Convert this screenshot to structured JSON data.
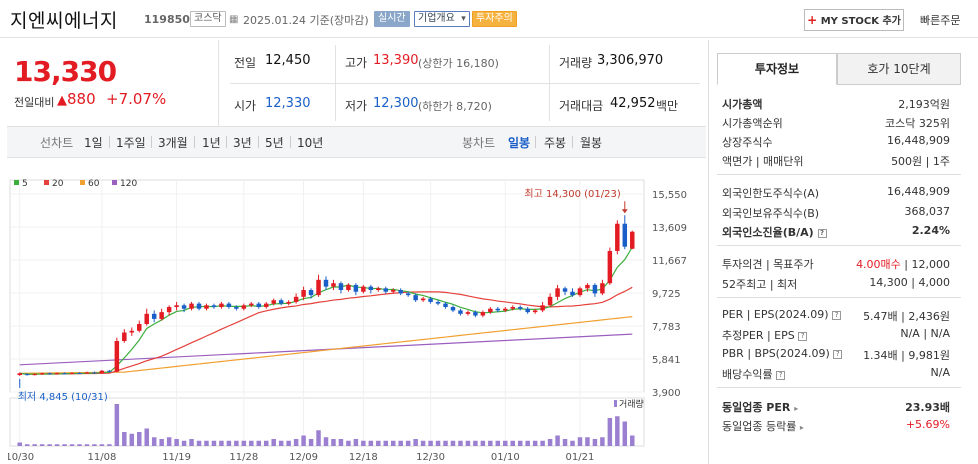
{
  "header": {
    "name": "지엔씨에너지",
    "code": "119850",
    "market": "코스닥",
    "date": "2025.01.24 기준(장마감)",
    "realtime": "실시간",
    "company": "기업개요",
    "warning": "투자주의",
    "mystock": "MY STOCK 추가",
    "quick": "빠른주문"
  },
  "price": {
    "current": "13,330",
    "change_label": "전일대비",
    "change_arrow": "▲",
    "change": "880",
    "change_pct": "+7.07%"
  },
  "quote": {
    "prev_label": "전일",
    "prev": "12,450",
    "high_label": "고가",
    "high": "13,390",
    "high_limit": "(상한가 16,180)",
    "volume_label": "거래량",
    "volume": "3,306,970",
    "open_label": "시가",
    "open": "12,330",
    "low_label": "저가",
    "low": "12,300",
    "low_limit": "(하한가 8,720)",
    "amount_label": "거래대금",
    "amount": "42,952",
    "amount_unit": "백만"
  },
  "periods": {
    "line": "선차트",
    "items": [
      "1일",
      "1주일",
      "3개월",
      "1년",
      "3년",
      "5년",
      "10년"
    ],
    "candle": "봉차트",
    "candle_items": [
      "일봉",
      "주봉",
      "월봉"
    ]
  },
  "chart_data": {
    "type": "candlestick",
    "legend": [
      "5",
      "20",
      "60",
      "120"
    ],
    "legend_colors": [
      "#3cae3c",
      "#e5403b",
      "#f0a030",
      "#9b5fc0"
    ],
    "yticks": [
      "15,550",
      "13,609",
      "11,667",
      "9,725",
      "7,783",
      "5,841",
      "3,900"
    ],
    "yrange": [
      3900,
      15550
    ],
    "xticks": [
      "10/30",
      "11/08",
      "11/19",
      "11/28",
      "12/09",
      "12/18",
      "12/30",
      "01/10",
      "01/21"
    ],
    "high_label": "최고 14,300 (01/23)",
    "low_label": "최저 4,845 (10/31)",
    "volume_label": "거래량",
    "candles": [
      [
        4900,
        5000,
        4845,
        5050
      ],
      [
        4950,
        4900,
        4870,
        5000
      ],
      [
        4900,
        4950,
        4880,
        5000
      ],
      [
        4950,
        5000,
        4900,
        5050
      ],
      [
        5000,
        4950,
        4920,
        5050
      ],
      [
        4950,
        5000,
        4920,
        5050
      ],
      [
        5000,
        4980,
        4950,
        5050
      ],
      [
        4980,
        5020,
        4950,
        5060
      ],
      [
        5020,
        5000,
        4970,
        5060
      ],
      [
        5000,
        5050,
        4980,
        5100
      ],
      [
        5050,
        5000,
        4980,
        5100
      ],
      [
        5000,
        5150,
        4980,
        5200
      ],
      [
        5150,
        5100,
        5050,
        5200
      ],
      [
        5100,
        6900,
        5050,
        7100
      ],
      [
        6900,
        7400,
        6800,
        7600
      ],
      [
        7400,
        7500,
        7200,
        7700
      ],
      [
        7500,
        7900,
        7400,
        8100
      ],
      [
        7900,
        8500,
        7800,
        8800
      ],
      [
        8500,
        8200,
        8000,
        8700
      ],
      [
        8200,
        8600,
        8100,
        8800
      ],
      [
        8600,
        8900,
        8400,
        9000
      ],
      [
        8900,
        9000,
        8700,
        9200
      ],
      [
        9000,
        8800,
        8600,
        9100
      ],
      [
        8800,
        9100,
        8700,
        9200
      ],
      [
        9100,
        8800,
        8700,
        9200
      ],
      [
        8800,
        9000,
        8700,
        9100
      ],
      [
        9000,
        8900,
        8800,
        9100
      ],
      [
        8900,
        9100,
        8800,
        9200
      ],
      [
        9100,
        8900,
        8800,
        9200
      ],
      [
        8900,
        8800,
        8700,
        9000
      ],
      [
        8800,
        9000,
        8700,
        9100
      ],
      [
        9000,
        9100,
        8900,
        9200
      ],
      [
        9100,
        8900,
        8800,
        9200
      ],
      [
        8900,
        9100,
        8800,
        9200
      ],
      [
        9100,
        9300,
        9000,
        9400
      ],
      [
        9300,
        9100,
        9000,
        9400
      ],
      [
        9100,
        9200,
        9000,
        9300
      ],
      [
        9200,
        9500,
        9100,
        9700
      ],
      [
        9500,
        9900,
        9300,
        10100
      ],
      [
        9900,
        9600,
        9400,
        10000
      ],
      [
        9600,
        10500,
        9500,
        10800
      ],
      [
        10500,
        10100,
        9900,
        10700
      ],
      [
        10100,
        10300,
        9900,
        10500
      ],
      [
        10300,
        9900,
        9700,
        10400
      ],
      [
        9900,
        10200,
        9800,
        10300
      ],
      [
        10200,
        9800,
        9600,
        10300
      ],
      [
        9800,
        10100,
        9700,
        10200
      ],
      [
        10100,
        9900,
        9700,
        10200
      ],
      [
        9900,
        10000,
        9800,
        10100
      ],
      [
        10000,
        9800,
        9700,
        10100
      ],
      [
        9800,
        9900,
        9700,
        10000
      ],
      [
        9900,
        9700,
        9600,
        10000
      ],
      [
        9700,
        9600,
        9500,
        9800
      ],
      [
        9600,
        9300,
        9200,
        9700
      ],
      [
        9300,
        9400,
        9200,
        9500
      ],
      [
        9400,
        9200,
        9100,
        9500
      ],
      [
        9200,
        9100,
        9000,
        9300
      ],
      [
        9100,
        8900,
        8800,
        9200
      ],
      [
        8900,
        8700,
        8600,
        9000
      ],
      [
        8700,
        8500,
        8400,
        8800
      ],
      [
        8500,
        8600,
        8400,
        8700
      ],
      [
        8600,
        8400,
        8300,
        8700
      ],
      [
        8400,
        8600,
        8300,
        8700
      ],
      [
        8600,
        8800,
        8500,
        8900
      ],
      [
        8800,
        8700,
        8600,
        8900
      ],
      [
        8700,
        8800,
        8600,
        8900
      ],
      [
        8800,
        8900,
        8700,
        9000
      ],
      [
        8900,
        8800,
        8700,
        9000
      ],
      [
        8800,
        8600,
        8500,
        8900
      ],
      [
        8600,
        8700,
        8500,
        8800
      ],
      [
        8700,
        9000,
        8600,
        9200
      ],
      [
        9000,
        9500,
        8900,
        9700
      ],
      [
        9500,
        10000,
        9300,
        10200
      ],
      [
        10000,
        9800,
        9600,
        10100
      ],
      [
        9800,
        9600,
        9500,
        10000
      ],
      [
        9600,
        10000,
        9500,
        10100
      ],
      [
        10000,
        10200,
        9800,
        10300
      ],
      [
        10200,
        9700,
        9500,
        10300
      ],
      [
        9700,
        10300,
        9600,
        10500
      ],
      [
        10300,
        12200,
        10200,
        12400
      ],
      [
        12200,
        13800,
        12000,
        14000
      ],
      [
        13800,
        12450,
        12300,
        14300
      ],
      [
        12330,
        13330,
        12300,
        13390
      ]
    ],
    "volumes": [
      2,
      1,
      1,
      1,
      1,
      1,
      1,
      1,
      1,
      1,
      1,
      1,
      1,
      24,
      8,
      7,
      8,
      10,
      5,
      4,
      5,
      4,
      3,
      4,
      3,
      3,
      3,
      3,
      3,
      3,
      3,
      3,
      3,
      3,
      4,
      3,
      3,
      4,
      6,
      4,
      9,
      5,
      4,
      4,
      3,
      4,
      3,
      3,
      3,
      3,
      3,
      3,
      3,
      4,
      3,
      3,
      3,
      3,
      3,
      3,
      3,
      3,
      3,
      3,
      3,
      3,
      3,
      3,
      3,
      3,
      3,
      4,
      6,
      4,
      3,
      5,
      5,
      4,
      5,
      16,
      17,
      14,
      6
    ]
  },
  "invest": {
    "tab1": "투자정보",
    "tab2": "호가 10단계",
    "rows": [
      [
        "시가총액",
        "2,193억원"
      ],
      [
        "시가총액순위",
        "코스닥 325위"
      ],
      [
        "상장주식수",
        "16,448,909"
      ],
      [
        "액면가 | 매매단위",
        "500원 | 1주"
      ],
      [
        "외국인한도주식수(A)",
        "16,448,909"
      ],
      [
        "외국인보유주식수(B)",
        "368,037"
      ],
      [
        "외국인소진율(B/A)",
        "2.24%"
      ],
      [
        "투자의견 | 목표주가",
        "4.00매수 | 12,000"
      ],
      [
        "52주최고 | 최저",
        "14,300 | 4,000"
      ],
      [
        "PER | EPS(2024.09)",
        "5.47배 | 2,436원"
      ],
      [
        "추정PER | EPS",
        "N/A | N/A"
      ],
      [
        "PBR | BPS(2024.09)",
        "1.34배 | 9,981원"
      ],
      [
        "배당수익률",
        "N/A"
      ],
      [
        "동일업종 PER",
        "23.93배"
      ],
      [
        "동일업종 등락률",
        "+5.69%"
      ]
    ]
  }
}
